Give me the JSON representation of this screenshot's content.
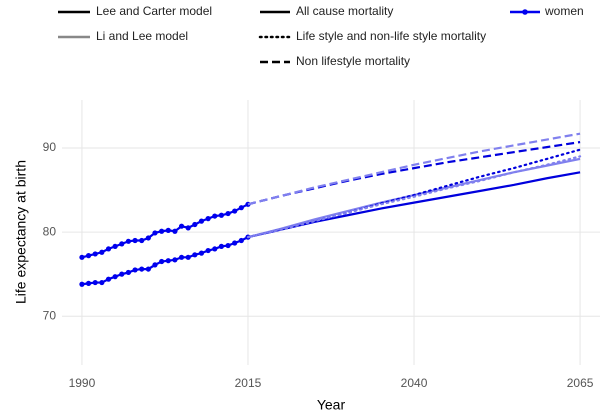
{
  "chart_data": {
    "type": "line",
    "x_label": "Year",
    "y_label": "Life expectancy at birth",
    "xlim": [
      1987,
      2068
    ],
    "xticks": [
      1990,
      2015,
      2040,
      2065
    ],
    "ylim": [
      64.2,
      95.7
    ],
    "yticks": [
      70,
      80,
      90
    ],
    "grid": true,
    "legend": {
      "models": [
        {
          "label": "Lee and Carter model",
          "color": "#000000"
        },
        {
          "label": "Li and Lee model",
          "color": "#888888"
        }
      ],
      "causes": [
        {
          "label": "All cause mortality",
          "dash": "solid"
        },
        {
          "label": "Life style and non-life style mortality",
          "dash": "dotted"
        },
        {
          "label": "Non lifestyle mortality",
          "dash": "dashed"
        }
      ],
      "groups": [
        {
          "label": "women",
          "color": "#0000ee"
        }
      ]
    },
    "series": [
      {
        "color": "#0000ee",
        "dash": "solid",
        "marker": true,
        "x": [
          1990,
          1991,
          1992,
          1993,
          1994,
          1995,
          1996,
          1997,
          1998,
          1999,
          2000,
          2001,
          2002,
          2003,
          2004,
          2005,
          2006,
          2007,
          2008,
          2009,
          2010,
          2011,
          2012,
          2013,
          2014,
          2015
        ],
        "values": [
          77.0,
          77.2,
          77.4,
          77.6,
          78.0,
          78.3,
          78.6,
          78.9,
          79.0,
          79.0,
          79.3,
          79.9,
          80.1,
          80.2,
          80.1,
          80.7,
          80.5,
          80.9,
          81.3,
          81.6,
          81.9,
          82.0,
          82.2,
          82.5,
          82.9,
          83.3
        ]
      },
      {
        "color": "#0000ee",
        "dash": "solid",
        "marker": true,
        "x": [
          1990,
          1991,
          1992,
          1993,
          1994,
          1995,
          1996,
          1997,
          1998,
          1999,
          2000,
          2001,
          2002,
          2003,
          2004,
          2005,
          2006,
          2007,
          2008,
          2009,
          2010,
          2011,
          2012,
          2013,
          2014,
          2015
        ],
        "values": [
          73.8,
          73.9,
          74.0,
          74.0,
          74.4,
          74.7,
          75.0,
          75.2,
          75.5,
          75.6,
          75.6,
          76.1,
          76.5,
          76.6,
          76.7,
          77.0,
          77.0,
          77.3,
          77.5,
          77.8,
          78.0,
          78.3,
          78.4,
          78.7,
          79.0,
          79.4
        ]
      },
      {
        "color": "#0000dd",
        "dash": "solid",
        "marker": false,
        "x": [
          2015,
          2020,
          2025,
          2030,
          2035,
          2040,
          2045,
          2050,
          2055,
          2060,
          2065
        ],
        "values": [
          79.4,
          80.3,
          81.2,
          82.0,
          82.8,
          83.5,
          84.2,
          84.9,
          85.6,
          86.4,
          87.1
        ]
      },
      {
        "color": "#8080ee",
        "dash": "solid",
        "marker": false,
        "x": [
          2015,
          2020,
          2025,
          2030,
          2035,
          2040,
          2045,
          2050,
          2055,
          2060,
          2065
        ],
        "values": [
          79.4,
          80.4,
          81.5,
          82.5,
          83.5,
          84.4,
          85.3,
          86.2,
          87.1,
          87.9,
          88.7
        ]
      },
      {
        "color": "#0000dd",
        "dash": "dotted",
        "marker": false,
        "x": [
          2015,
          2020,
          2025,
          2030,
          2035,
          2040,
          2045,
          2050,
          2055,
          2060,
          2065
        ],
        "values": [
          79.4,
          80.3,
          81.3,
          82.3,
          83.4,
          84.4,
          85.5,
          86.6,
          87.6,
          88.7,
          89.8
        ]
      },
      {
        "color": "#8080ee",
        "dash": "dotted",
        "marker": false,
        "x": [
          2015,
          2020,
          2025,
          2030,
          2035,
          2040,
          2045,
          2050,
          2055,
          2060,
          2065
        ],
        "values": [
          79.4,
          80.3,
          81.3,
          82.3,
          83.3,
          84.2,
          85.2,
          86.1,
          87.1,
          88.0,
          89.0
        ]
      },
      {
        "color": "#0000dd",
        "dash": "dashed",
        "marker": false,
        "x": [
          2015,
          2020,
          2025,
          2030,
          2035,
          2040,
          2045,
          2050,
          2055,
          2060,
          2065
        ],
        "values": [
          83.3,
          84.3,
          85.2,
          86.1,
          86.9,
          87.6,
          88.3,
          88.9,
          89.5,
          90.1,
          90.7
        ]
      },
      {
        "color": "#8080ee",
        "dash": "dashed",
        "marker": false,
        "x": [
          2015,
          2020,
          2025,
          2030,
          2035,
          2040,
          2045,
          2050,
          2055,
          2060,
          2065
        ],
        "values": [
          83.3,
          84.3,
          85.3,
          86.2,
          87.1,
          88.0,
          88.8,
          89.6,
          90.3,
          91.0,
          91.7
        ]
      }
    ]
  }
}
